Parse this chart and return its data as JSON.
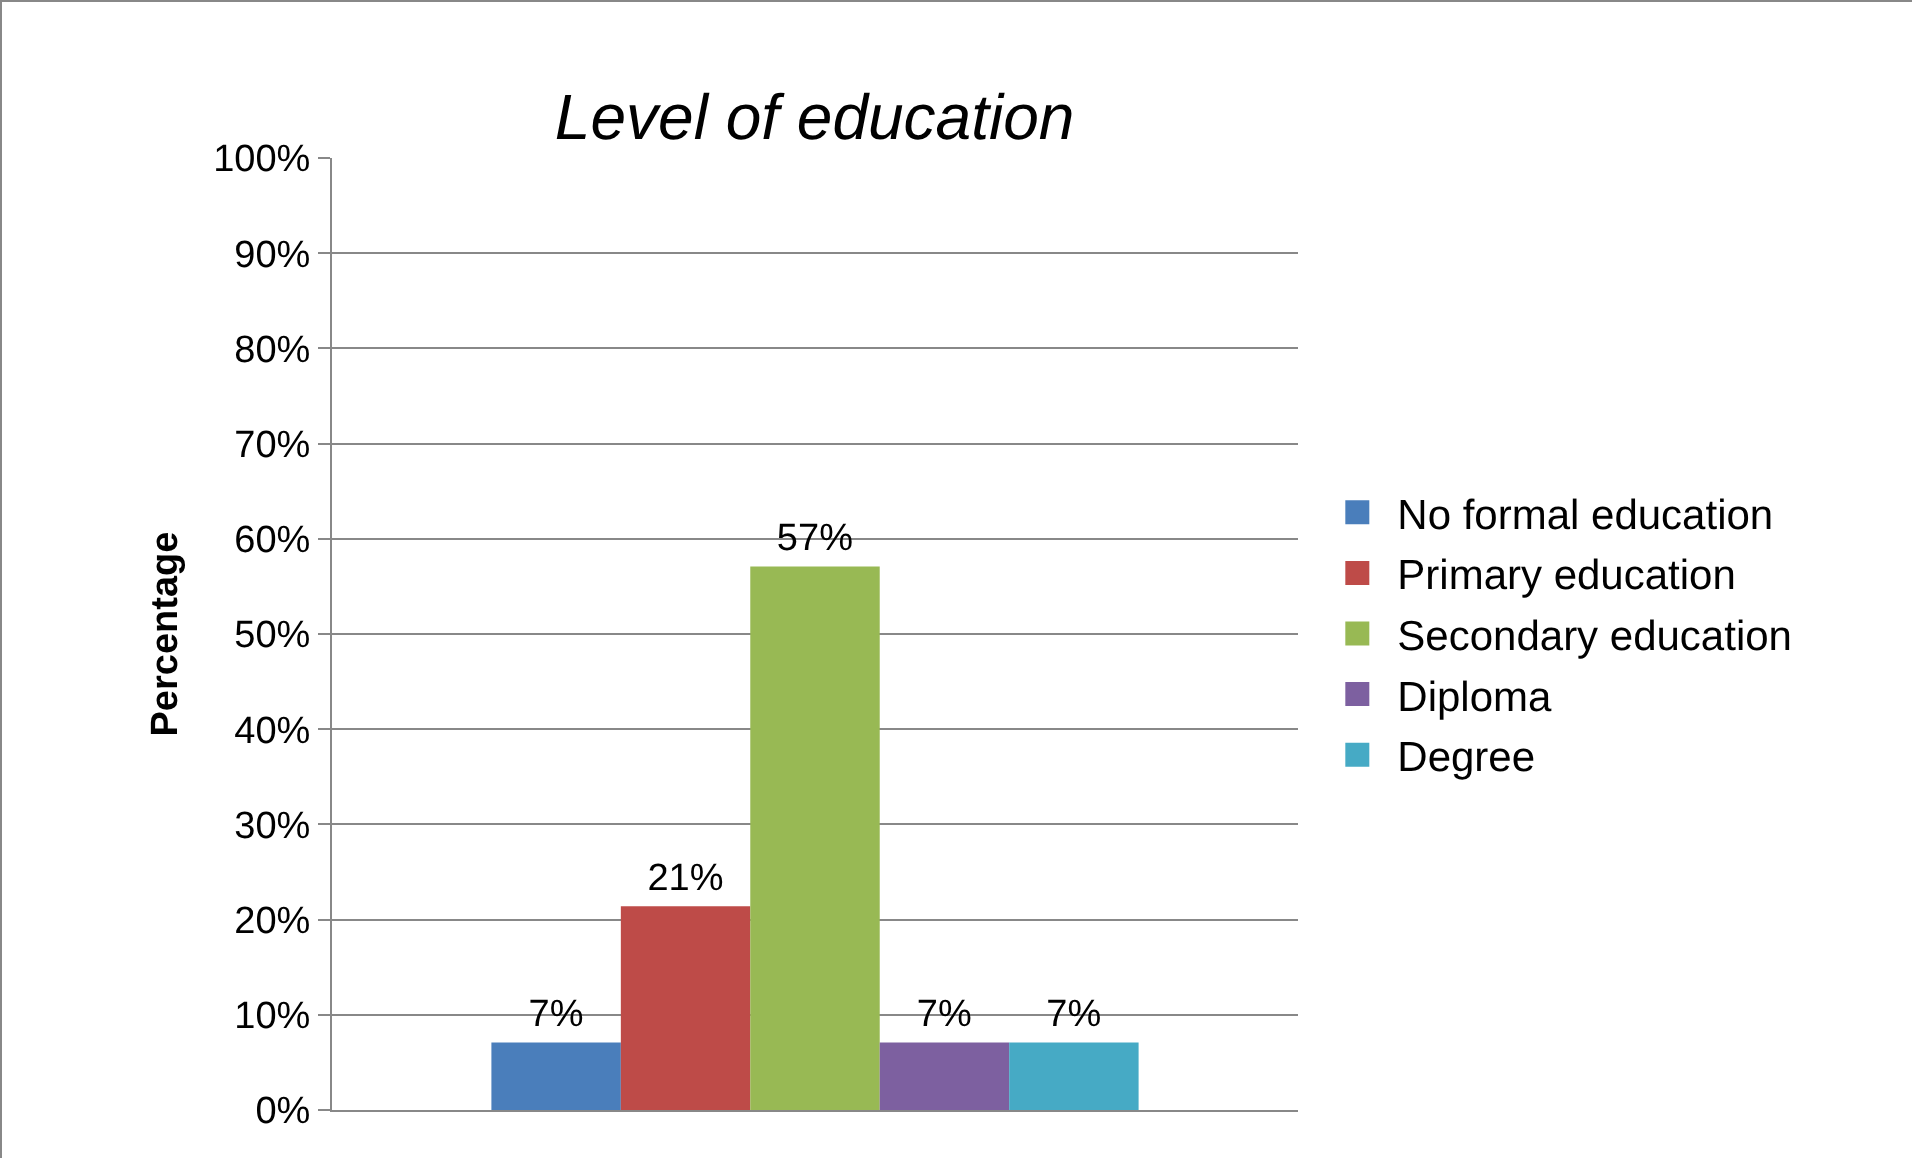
{
  "chart_data": {
    "type": "bar",
    "title": "Level of education",
    "ylabel": "Percentage",
    "categories": [
      null
    ],
    "series": [
      {
        "name": "No formal education",
        "color": "#4a7ebb",
        "values": [
          7.1
        ],
        "value_labels": [
          "7%"
        ]
      },
      {
        "name": "Primary education",
        "color": "#be4b48",
        "values": [
          21.4
        ],
        "value_labels": [
          "21%"
        ]
      },
      {
        "name": "Secondary education",
        "color": "#98b954",
        "values": [
          57.1
        ],
        "value_labels": [
          "57%"
        ]
      },
      {
        "name": "Diploma",
        "color": "#7d60a0",
        "values": [
          7.1
        ],
        "value_labels": [
          "7%"
        ]
      },
      {
        "name": "Degree",
        "color": "#46aac5",
        "values": [
          7.1
        ],
        "value_labels": [
          "7%"
        ]
      }
    ],
    "ylim": [
      0,
      100
    ],
    "yticks": [
      {
        "value": 0,
        "label": "0%"
      },
      {
        "value": 10,
        "label": "10%"
      },
      {
        "value": 20,
        "label": "20%"
      },
      {
        "value": 30,
        "label": "30%"
      },
      {
        "value": 40,
        "label": "40%"
      },
      {
        "value": 50,
        "label": "50%"
      },
      {
        "value": 60,
        "label": "60%"
      },
      {
        "value": 70,
        "label": "70%"
      },
      {
        "value": 80,
        "label": "80%"
      },
      {
        "value": 90,
        "label": "90%"
      },
      {
        "value": 100,
        "label": "100%"
      }
    ],
    "grid": "y",
    "legend": "right"
  }
}
